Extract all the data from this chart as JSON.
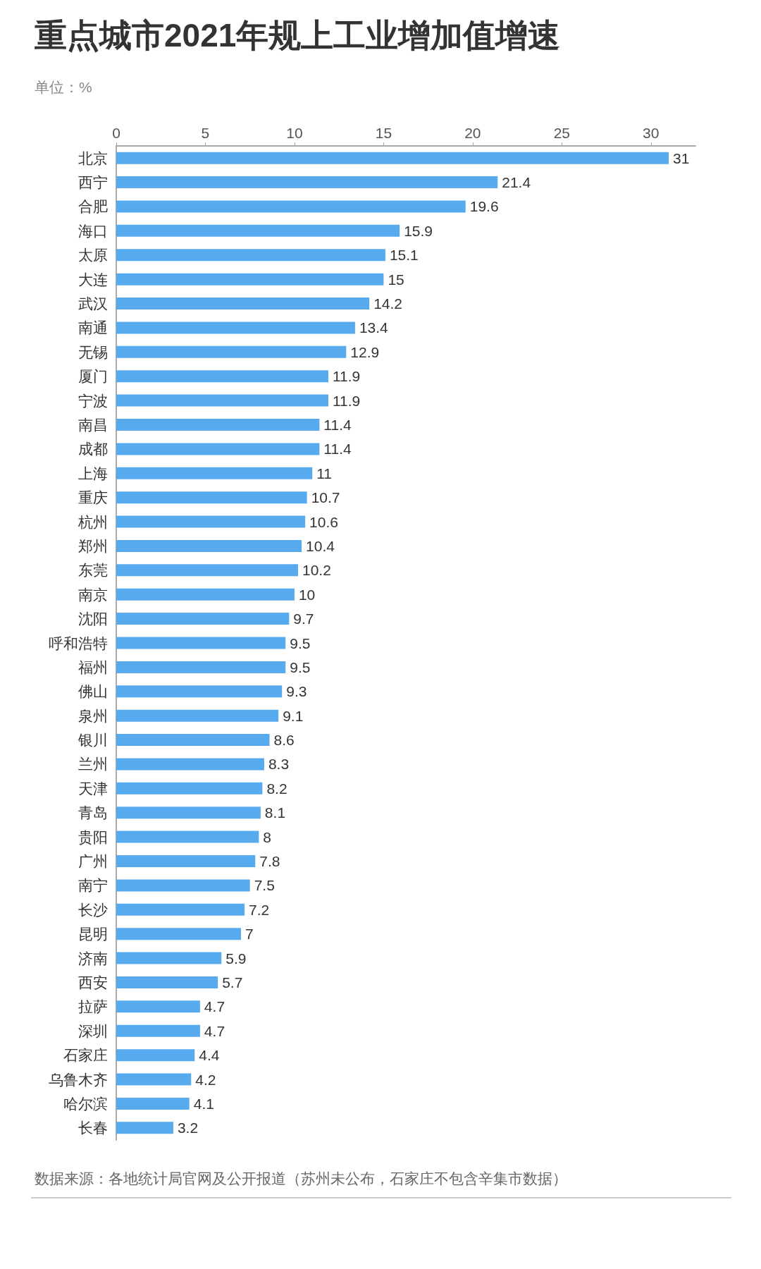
{
  "chart_data": {
    "type": "bar",
    "orientation": "horizontal",
    "title": "重点城市2021年规上工业增加值增速",
    "subtitle": "单位：%",
    "categories": [
      "北京",
      "西宁",
      "合肥",
      "海口",
      "太原",
      "大连",
      "武汉",
      "南通",
      "无锡",
      "厦门",
      "宁波",
      "南昌",
      "成都",
      "上海",
      "重庆",
      "杭州",
      "郑州",
      "东莞",
      "南京",
      "沈阳",
      "呼和浩特",
      "福州",
      "佛山",
      "泉州",
      "银川",
      "兰州",
      "天津",
      "青岛",
      "贵阳",
      "广州",
      "南宁",
      "长沙",
      "昆明",
      "济南",
      "西安",
      "拉萨",
      "深圳",
      "石家庄",
      "乌鲁木齐",
      "哈尔滨",
      "长春"
    ],
    "values": [
      31,
      21.4,
      19.6,
      15.9,
      15.1,
      15,
      14.2,
      13.4,
      12.9,
      11.9,
      11.9,
      11.4,
      11.4,
      11,
      10.7,
      10.6,
      10.4,
      10.2,
      10,
      9.7,
      9.5,
      9.5,
      9.3,
      9.1,
      8.6,
      8.3,
      8.2,
      8.1,
      8,
      7.8,
      7.5,
      7.2,
      7,
      5.9,
      5.7,
      4.7,
      4.7,
      4.4,
      4.2,
      4.1,
      3.2
    ],
    "color": "#58aaee",
    "data_labels": true,
    "xlim": [
      0,
      32.5
    ],
    "xticks": [
      0,
      5,
      10,
      15,
      20,
      25,
      30
    ],
    "grid": false,
    "annotations": [
      "数据来源：各地统计局官网及公开报道（苏州未公布，石家庄不包含辛集市数据）"
    ]
  }
}
